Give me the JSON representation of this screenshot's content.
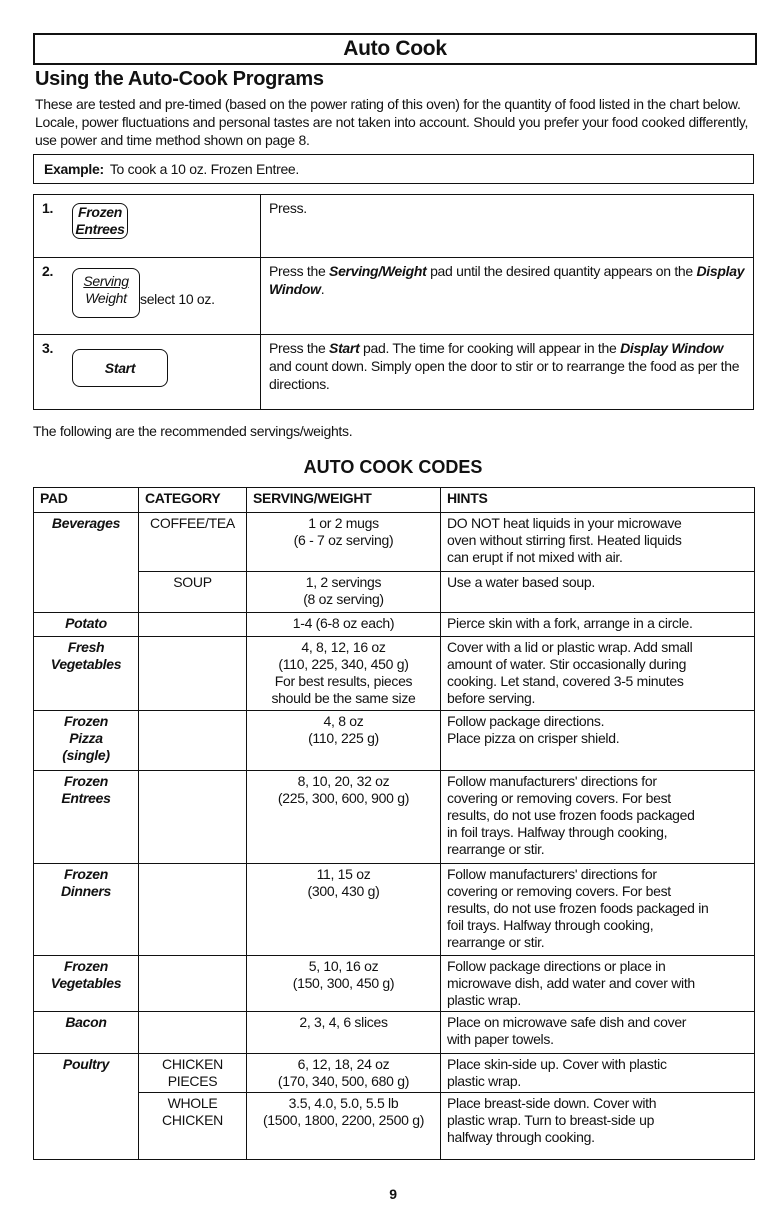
{
  "title": "Auto Cook",
  "heading": "Using the Auto-Cook Programs",
  "intro": "These are tested and pre-timed (based on the power rating of this oven) for the quantity of food listed in the chart below. Locale, power fluctuations and personal tastes are not taken into account. Should you prefer your food cooked differently, use power and time method shown on page 8.",
  "example": {
    "label": "Example:",
    "text": "To cook a 10 oz. Frozen Entree."
  },
  "steps": [
    {
      "num": "1.",
      "pad_line1": "Frozen",
      "pad_line2": "Entrees",
      "extra": "",
      "text": "Press."
    },
    {
      "num": "2.",
      "pad_line1": "Serving",
      "pad_line2": "Weight",
      "extra": "select 10 oz.",
      "text_parts": [
        "Press the ",
        "Serving/Weight",
        " pad until the desired quantity appears on the ",
        "Display Window",
        "."
      ]
    },
    {
      "num": "3.",
      "pad_line1": "Start",
      "text_parts": [
        "Press the ",
        "Start",
        " pad. The time for cooking will appear in the ",
        "Display Window",
        " and count down. Simply open the door to stir or to rearrange the food as per the directions."
      ]
    }
  ],
  "following": "The following are the recommended servings/weights.",
  "codes_title": "AUTO COOK CODES",
  "table": {
    "headers": [
      "PAD",
      "CATEGORY",
      "SERVING/WEIGHT",
      "HINTS"
    ],
    "rows": [
      {
        "pad": "Beverages",
        "rowspan": 2,
        "category": "COFFEE/TEA",
        "serving": "1 or 2 mugs\n(6 - 7 oz serving)",
        "hint": "DO NOT heat liquids in your microwave\noven without stirring first. Heated liquids\ncan erupt if not mixed with air."
      },
      {
        "category": "SOUP",
        "serving": "1, 2 servings\n(8 oz serving)",
        "hint": "Use a water based soup."
      },
      {
        "pad": "Potato",
        "category": "",
        "serving": "1-4 (6-8 oz each)",
        "hint": "Pierce skin with a fork, arrange in a circle."
      },
      {
        "pad": "Fresh\nVegetables",
        "category": "",
        "serving": "4, 8, 12, 16 oz\n(110, 225, 340, 450 g)\nFor best results, pieces\nshould be the same size",
        "hint": "Cover with a lid or plastic wrap. Add small\namount of water. Stir occasionally during\ncooking. Let stand, covered 3-5 minutes\nbefore serving."
      },
      {
        "pad": "Frozen\nPizza\n(single)",
        "category": "",
        "serving": "4, 8 oz\n(110, 225 g)",
        "hint": "Follow package directions.\nPlace pizza on crisper shield."
      },
      {
        "pad": "Frozen\nEntrees",
        "category": "",
        "serving": "8, 10, 20, 32 oz\n(225, 300, 600, 900 g)",
        "hint": "Follow manufacturers' directions for\ncovering or removing covers. For best\nresults, do not use frozen foods packaged\nin foil trays. Halfway through cooking,\nrearrange or stir."
      },
      {
        "pad": "Frozen\nDinners",
        "category": "",
        "serving": "11, 15 oz\n(300, 430 g)",
        "hint": "Follow manufacturers' directions for\ncovering or removing covers. For best\nresults, do not use frozen foods packaged in\nfoil trays. Halfway through cooking,\nrearrange or stir."
      },
      {
        "pad": "Frozen\nVegetables",
        "category": "",
        "serving": "5, 10, 16 oz\n(150, 300, 450 g)",
        "hint": "Follow package directions or place in\nmicrowave dish, add water and cover with\nplastic wrap."
      },
      {
        "pad": "Bacon",
        "category": "",
        "serving": "2, 3, 4, 6 slices",
        "hint": "Place on microwave safe dish and cover\nwith paper towels."
      },
      {
        "pad": "Poultry",
        "rowspan": 2,
        "category": "CHICKEN\nPIECES",
        "serving": "6, 12, 18, 24 oz\n(170, 340, 500, 680 g)",
        "hint": "Place skin-side up. Cover with plastic\nplastic wrap."
      },
      {
        "category": "WHOLE\nCHICKEN",
        "serving": "3.5, 4.0, 5.0, 5.5 lb\n(1500, 1800, 2200, 2500 g)",
        "hint": "Place breast-side down. Cover with\nplastic wrap. Turn to breast-side up\nhalfway through cooking."
      }
    ]
  },
  "page_number": "9"
}
